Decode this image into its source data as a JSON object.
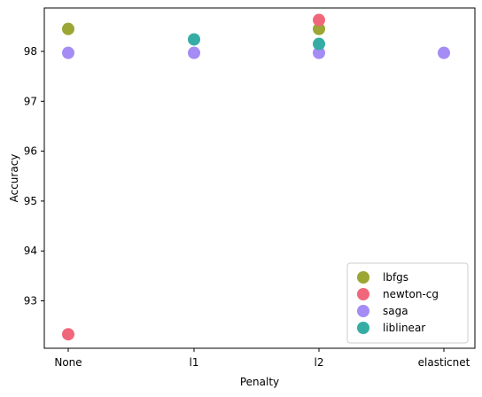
{
  "chart_data": {
    "type": "scatter",
    "xlabel": "Penalty",
    "ylabel": "Accuracy",
    "categories": [
      "None",
      "l1",
      "l2",
      "elasticnet"
    ],
    "yticks": [
      93,
      94,
      95,
      96,
      97,
      98
    ],
    "ylim": [
      92.05,
      98.87
    ],
    "grid": false,
    "legend_position": "lower-right",
    "series": [
      {
        "name": "lbfgs",
        "color": "#9ba635",
        "points": [
          {
            "x": "None",
            "y": 98.45
          },
          {
            "x": "l2",
            "y": 98.45
          }
        ]
      },
      {
        "name": "newton-cg",
        "color": "#f0677b",
        "points": [
          {
            "x": "None",
            "y": 92.33
          },
          {
            "x": "l2",
            "y": 98.63
          }
        ]
      },
      {
        "name": "saga",
        "color": "#a48cf4",
        "points": [
          {
            "x": "None",
            "y": 97.97
          },
          {
            "x": "l1",
            "y": 97.97
          },
          {
            "x": "l2",
            "y": 97.97
          },
          {
            "x": "elasticnet",
            "y": 97.97
          }
        ]
      },
      {
        "name": "liblinear",
        "color": "#36ada4",
        "points": [
          {
            "x": "l1",
            "y": 98.24
          },
          {
            "x": "l2",
            "y": 98.15
          }
        ]
      }
    ]
  }
}
